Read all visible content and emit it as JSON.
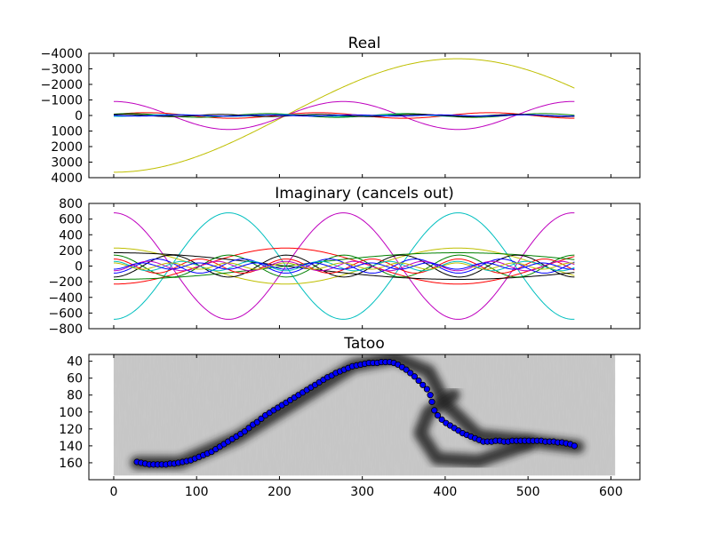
{
  "chart_data": [
    {
      "type": "line",
      "title": "Real",
      "xlim": [
        -30,
        635
      ],
      "ylim": [
        4000,
        -4000
      ],
      "y_inverted": true,
      "x_ticks": [
        0,
        100,
        200,
        300,
        400,
        500,
        600
      ],
      "y_ticks": [
        4000,
        3000,
        2000,
        1000,
        0,
        -1000,
        -2000,
        -3000,
        -4000
      ],
      "y_tick_labels": [
        "4000",
        "3000",
        "2000",
        "1000",
        "0",
        "−1000",
        "−2000",
        "−3000",
        "−4000"
      ],
      "show_x_tick_labels": false,
      "grid": false,
      "series": [
        {
          "color": "#bfbf00",
          "kind": "cos",
          "amp": 3650,
          "period": 830,
          "phase": 0,
          "x0": 0,
          "x1": 557
        },
        {
          "color": "#bf00bf",
          "kind": "cos",
          "amp": -900,
          "period": 277,
          "phase": 0,
          "x0": 0,
          "x1": 557
        },
        {
          "color": "#ff0000",
          "kind": "cos",
          "amp": -180,
          "period": 207,
          "phase": 40,
          "x0": 0,
          "x1": 557
        },
        {
          "color": "#008000",
          "kind": "cos",
          "amp": -120,
          "period": 166,
          "phase": 20,
          "x0": 0,
          "x1": 557
        },
        {
          "color": "#00bfbf",
          "kind": "cos",
          "amp": 60,
          "period": 139,
          "phase": 0,
          "x0": 0,
          "x1": 557
        },
        {
          "color": "#000000",
          "kind": "cos",
          "amp": -70,
          "period": 119,
          "phase": 10,
          "x0": 0,
          "x1": 557
        },
        {
          "color": "#0000ff",
          "kind": "cos",
          "amp": 40,
          "period": 104,
          "phase": 30,
          "x0": 0,
          "x1": 557
        }
      ]
    },
    {
      "type": "line",
      "title": "Imaginary (cancels out)",
      "xlim": [
        -30,
        635
      ],
      "ylim": [
        -800,
        800
      ],
      "x_ticks": [
        0,
        100,
        200,
        300,
        400,
        500,
        600
      ],
      "y_ticks": [
        800,
        600,
        400,
        200,
        0,
        -200,
        -400,
        -600,
        -800
      ],
      "y_tick_labels": [
        "800",
        "600",
        "400",
        "200",
        "0",
        "−200",
        "−400",
        "−600",
        "−800"
      ],
      "show_x_tick_labels": false,
      "grid": false,
      "series": [
        {
          "color": "#bf00bf",
          "kind": "cos",
          "amp": 680,
          "period": 277,
          "phase": 0,
          "x0": 0,
          "x1": 557
        },
        {
          "color": "#00bfbf",
          "kind": "cos",
          "amp": -680,
          "period": 277,
          "phase": 0,
          "x0": 0,
          "x1": 557
        },
        {
          "color": "#bfbf00",
          "kind": "cos",
          "amp": 230,
          "period": 415,
          "phase": 0,
          "x0": 0,
          "x1": 557
        },
        {
          "color": "#ff0000",
          "kind": "cos",
          "amp": -230,
          "period": 415,
          "phase": 0,
          "x0": 0,
          "x1": 557
        },
        {
          "color": "#000000",
          "kind": "cos",
          "amp": 170,
          "period": 830,
          "phase": 0,
          "x0": 0,
          "x1": 557
        },
        {
          "color": "#008000",
          "kind": "cos",
          "amp": -170,
          "period": 830,
          "phase": 0,
          "x0": 0,
          "x1": 557
        },
        {
          "color": "#008000",
          "kind": "cos",
          "amp": 140,
          "period": 139,
          "phase": 0,
          "x0": 0,
          "x1": 557
        },
        {
          "color": "#000000",
          "kind": "cos",
          "amp": -140,
          "period": 139,
          "phase": 0,
          "x0": 0,
          "x1": 557
        },
        {
          "color": "#ff0000",
          "kind": "cos",
          "amp": 90,
          "period": 104,
          "phase": 0,
          "x0": 0,
          "x1": 557
        },
        {
          "color": "#0000ff",
          "kind": "cos",
          "amp": -90,
          "period": 104,
          "phase": 0,
          "x0": 0,
          "x1": 557
        },
        {
          "color": "#00bfbf",
          "kind": "cos",
          "amp": 60,
          "period": 83,
          "phase": 0,
          "x0": 0,
          "x1": 557
        },
        {
          "color": "#bf00bf",
          "kind": "cos",
          "amp": -60,
          "period": 83,
          "phase": 0,
          "x0": 0,
          "x1": 557
        },
        {
          "color": "#bfbf00",
          "kind": "cos",
          "amp": 40,
          "period": 69,
          "phase": 0,
          "x0": 0,
          "x1": 557
        },
        {
          "color": "#0000ff",
          "kind": "cos",
          "amp": -40,
          "period": 69,
          "phase": 0,
          "x0": 0,
          "x1": 557
        }
      ]
    },
    {
      "type": "scatter",
      "title": "Tatoo",
      "xlim": [
        -30,
        635
      ],
      "ylim": [
        180,
        32
      ],
      "y_inverted": true,
      "x_ticks": [
        0,
        100,
        200,
        300,
        400,
        500,
        600
      ],
      "x_tick_labels": [
        "0",
        "100",
        "200",
        "300",
        "400",
        "500",
        "600"
      ],
      "y_ticks": [
        40,
        60,
        80,
        100,
        120,
        140,
        160
      ],
      "y_tick_labels": [
        "40",
        "60",
        "80",
        "100",
        "120",
        "140",
        "160"
      ],
      "grid": false,
      "background_image": "grayscale tattoo wave photograph",
      "image_extent": [
        0,
        605,
        32,
        175
      ],
      "image_strokes": [
        [
          [
            28,
            160
          ],
          [
            80,
            160
          ],
          [
            150,
            130
          ],
          [
            230,
            82
          ],
          [
            290,
            45
          ],
          [
            340,
            36
          ],
          [
            380,
            52
          ],
          [
            400,
            90
          ],
          [
            440,
            128
          ],
          [
            500,
            134
          ],
          [
            560,
            141
          ]
        ],
        [
          [
            410,
            80
          ],
          [
            380,
            100
          ],
          [
            370,
            125
          ],
          [
            390,
            155
          ],
          [
            440,
            158
          ],
          [
            500,
            138
          ]
        ]
      ],
      "marker_color": "#0000ff",
      "points": [
        [
          28,
          159
        ],
        [
          33,
          160
        ],
        [
          38,
          161
        ],
        [
          43,
          162
        ],
        [
          48,
          162
        ],
        [
          53,
          162
        ],
        [
          58,
          162
        ],
        [
          63,
          162
        ],
        [
          68,
          161
        ],
        [
          73,
          161
        ],
        [
          78,
          160
        ],
        [
          83,
          159
        ],
        [
          88,
          158
        ],
        [
          93,
          157
        ],
        [
          98,
          155
        ],
        [
          103,
          153
        ],
        [
          108,
          151
        ],
        [
          113,
          149
        ],
        [
          118,
          147
        ],
        [
          123,
          144
        ],
        [
          128,
          141
        ],
        [
          133,
          138
        ],
        [
          138,
          135
        ],
        [
          143,
          132
        ],
        [
          148,
          129
        ],
        [
          153,
          126
        ],
        [
          158,
          123
        ],
        [
          163,
          119
        ],
        [
          168,
          115
        ],
        [
          173,
          112
        ],
        [
          178,
          108
        ],
        [
          183,
          104
        ],
        [
          188,
          101
        ],
        [
          193,
          98
        ],
        [
          198,
          95
        ],
        [
          203,
          92
        ],
        [
          208,
          89
        ],
        [
          213,
          86
        ],
        [
          218,
          83
        ],
        [
          223,
          80
        ],
        [
          228,
          77
        ],
        [
          233,
          74
        ],
        [
          238,
          71
        ],
        [
          243,
          68
        ],
        [
          248,
          65
        ],
        [
          253,
          62
        ],
        [
          258,
          59
        ],
        [
          263,
          57
        ],
        [
          268,
          54
        ],
        [
          273,
          52
        ],
        [
          278,
          50
        ],
        [
          283,
          48
        ],
        [
          288,
          46
        ],
        [
          293,
          45
        ],
        [
          298,
          44
        ],
        [
          303,
          43
        ],
        [
          308,
          42
        ],
        [
          313,
          42
        ],
        [
          318,
          42
        ],
        [
          323,
          41
        ],
        [
          328,
          41
        ],
        [
          333,
          41
        ],
        [
          338,
          42
        ],
        [
          343,
          44
        ],
        [
          348,
          47
        ],
        [
          353,
          50
        ],
        [
          358,
          54
        ],
        [
          363,
          58
        ],
        [
          368,
          63
        ],
        [
          373,
          68
        ],
        [
          378,
          73
        ],
        [
          382,
          80
        ],
        [
          384,
          88
        ],
        [
          387,
          98
        ],
        [
          391,
          104
        ],
        [
          396,
          109
        ],
        [
          401,
          113
        ],
        [
          406,
          116
        ],
        [
          411,
          119
        ],
        [
          416,
          122
        ],
        [
          421,
          125
        ],
        [
          426,
          127
        ],
        [
          431,
          129
        ],
        [
          436,
          131
        ],
        [
          441,
          133
        ],
        [
          446,
          135
        ],
        [
          451,
          135
        ],
        [
          456,
          135
        ],
        [
          461,
          134
        ],
        [
          466,
          134
        ],
        [
          471,
          135
        ],
        [
          476,
          135
        ],
        [
          481,
          134
        ],
        [
          486,
          134
        ],
        [
          491,
          134
        ],
        [
          496,
          134
        ],
        [
          501,
          134
        ],
        [
          506,
          134
        ],
        [
          511,
          134
        ],
        [
          516,
          134
        ],
        [
          521,
          135
        ],
        [
          526,
          135
        ],
        [
          531,
          135
        ],
        [
          536,
          136
        ],
        [
          541,
          136
        ],
        [
          546,
          137
        ],
        [
          551,
          138
        ],
        [
          556,
          140
        ]
      ]
    }
  ]
}
